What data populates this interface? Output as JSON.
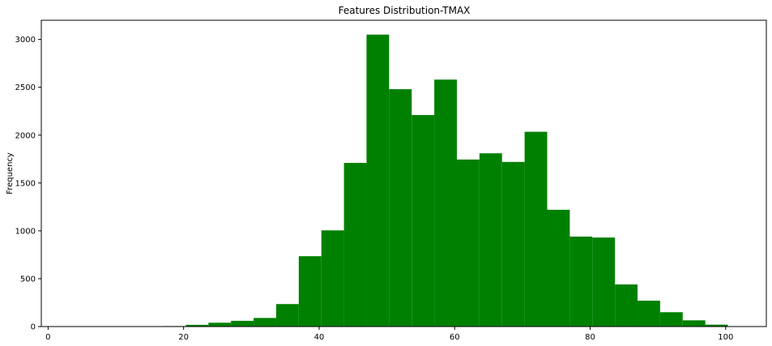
{
  "chart_data": {
    "type": "bar",
    "title": "Features Distribution-TMAX",
    "xlabel": "",
    "ylabel": "Frequency",
    "bin_start": 17,
    "bin_width": 3.333,
    "values": [
      5,
      18,
      40,
      60,
      90,
      235,
      735,
      1005,
      1710,
      3050,
      2480,
      2210,
      2580,
      1745,
      1810,
      1720,
      2035,
      1220,
      940,
      930,
      440,
      270,
      150,
      65,
      20
    ],
    "xlim": [
      -1,
      106
    ],
    "ylim": [
      0,
      3200
    ],
    "xticks": [
      "0",
      "20",
      "40",
      "60",
      "80",
      "100"
    ],
    "xtick_values": [
      0,
      20,
      40,
      60,
      80,
      100
    ],
    "yticks": [
      "0",
      "500",
      "1000",
      "1500",
      "2000",
      "2500",
      "3000"
    ],
    "ytick_values": [
      0,
      500,
      1000,
      1500,
      2000,
      2500,
      3000
    ],
    "bar_color": "#008000",
    "grid": false,
    "legend": false
  }
}
